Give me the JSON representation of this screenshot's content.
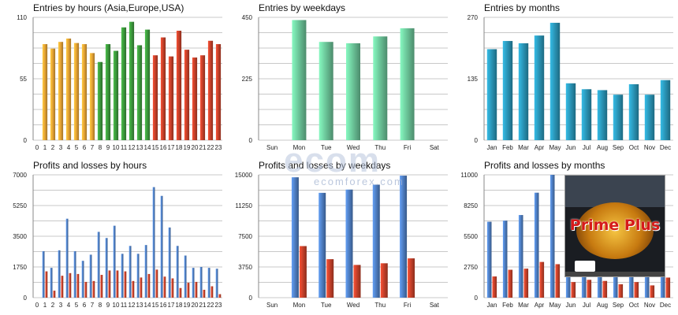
{
  "colors": {
    "grid": "#c8c8c8",
    "axis_text": "#222222",
    "orange": "#e8a535",
    "green": "#3d9a3d",
    "red": "#c8412a",
    "mint": "#6cc79a",
    "teal": "#2a96b8",
    "blue": "#4f7fc4",
    "loss_red": "#c8412a"
  },
  "watermark": {
    "brand": "ecom",
    "site": "ecomforex.com"
  },
  "ad": {
    "title": "Prime Plus"
  },
  "chart_data": [
    {
      "type": "bar",
      "title": "Entries by hours (Asia,Europe,USA)",
      "categories": [
        "0",
        "1",
        "2",
        "3",
        "4",
        "5",
        "6",
        "7",
        "8",
        "9",
        "10",
        "11",
        "12",
        "13",
        "14",
        "15",
        "16",
        "17",
        "18",
        "19",
        "20",
        "21",
        "22",
        "23"
      ],
      "ylim": [
        0,
        110
      ],
      "yticks": [
        "0",
        "55",
        "110"
      ],
      "series": [
        {
          "values": [
            null,
            86,
            82,
            88,
            91,
            87,
            86,
            78,
            70,
            86,
            80,
            101,
            106,
            85,
            99,
            76,
            92,
            75,
            98,
            81,
            74,
            76,
            89,
            86
          ]
        }
      ],
      "bar_color_groups": [
        "",
        "orange",
        "orange",
        "orange",
        "orange",
        "orange",
        "orange",
        "orange",
        "green",
        "green",
        "green",
        "green",
        "green",
        "green",
        "green",
        "red",
        "red",
        "red",
        "red",
        "red",
        "red",
        "red",
        "red",
        "red"
      ]
    },
    {
      "type": "bar",
      "title": "Entries by weekdays",
      "categories": [
        "Sun",
        "Mon",
        "Tue",
        "Wed",
        "Thu",
        "Fri",
        "Sat"
      ],
      "ylim": [
        0,
        450
      ],
      "yticks": [
        "0",
        "225",
        "450"
      ],
      "series": [
        {
          "values": [
            null,
            440,
            360,
            355,
            380,
            410,
            null
          ]
        }
      ]
    },
    {
      "type": "bar",
      "title": "Entries by months",
      "categories": [
        "Jan",
        "Feb",
        "Mar",
        "Apr",
        "May",
        "Jun",
        "Jul",
        "Aug",
        "Sep",
        "Oct",
        "Nov",
        "Dec"
      ],
      "ylim": [
        0,
        270
      ],
      "yticks": [
        "0",
        "135",
        "270"
      ],
      "series": [
        {
          "values": [
            200,
            218,
            213,
            230,
            258,
            125,
            112,
            110,
            100,
            123,
            100,
            132
          ]
        }
      ]
    },
    {
      "type": "bar",
      "title": "Profits and losses by hours",
      "categories": [
        "0",
        "1",
        "2",
        "3",
        "4",
        "5",
        "6",
        "7",
        "8",
        "9",
        "10",
        "11",
        "12",
        "13",
        "14",
        "15",
        "16",
        "17",
        "18",
        "19",
        "20",
        "21",
        "22",
        "23"
      ],
      "ylim": [
        0,
        7000
      ],
      "yticks": [
        "0",
        "1750",
        "3500",
        "5250",
        "7000"
      ],
      "series": [
        {
          "values": [
            null,
            2650,
            1700,
            2700,
            4500,
            2650,
            2100,
            2450,
            3750,
            3400,
            4100,
            2500,
            2950,
            2500,
            3000,
            6300,
            5800,
            4000,
            2950,
            2400,
            1700,
            1750,
            1700,
            1650
          ]
        },
        {
          "values": [
            null,
            1500,
            400,
            1250,
            1400,
            1350,
            900,
            950,
            1300,
            1550,
            1550,
            1500,
            950,
            1150,
            1350,
            1600,
            1200,
            1100,
            550,
            850,
            900,
            450,
            650,
            200
          ]
        }
      ]
    },
    {
      "type": "bar",
      "title": "Profits and losses by weekdays",
      "categories": [
        "Sun",
        "Mon",
        "Tue",
        "Wed",
        "Thu",
        "Fri",
        "Sat"
      ],
      "ylim": [
        0,
        15000
      ],
      "yticks": [
        "0",
        "3750",
        "7500",
        "11250",
        "15000"
      ],
      "series": [
        {
          "values": [
            null,
            14700,
            12800,
            13200,
            13800,
            14900,
            null
          ]
        },
        {
          "values": [
            null,
            6300,
            4700,
            4000,
            4200,
            4800,
            null
          ]
        }
      ]
    },
    {
      "type": "bar",
      "title": "Profits and losses by months",
      "categories": [
        "Jan",
        "Feb",
        "Mar",
        "Apr",
        "May",
        "Jun",
        "Jul",
        "Aug",
        "Sep",
        "Oct",
        "Nov",
        "Dec"
      ],
      "ylim": [
        0,
        11000
      ],
      "yticks": [
        "0",
        "2750",
        "5500",
        "8250",
        "11000"
      ],
      "series": [
        {
          "values": [
            6800,
            6900,
            7400,
            9400,
            11000,
            4800,
            5000,
            4900,
            4800,
            5000,
            4700,
            5000
          ]
        },
        {
          "values": [
            1900,
            2500,
            2600,
            3200,
            3000,
            1400,
            1600,
            1500,
            1200,
            1400,
            1100,
            1800
          ]
        }
      ]
    }
  ]
}
